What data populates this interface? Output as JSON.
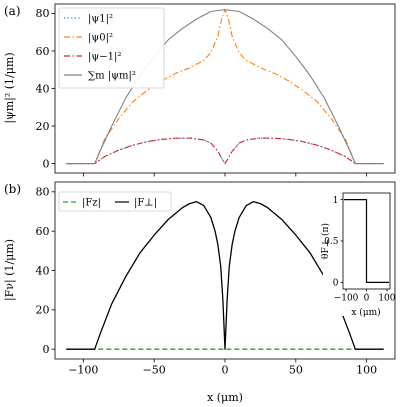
{
  "chart_data": [
    {
      "type": "line",
      "panel_label": "(a)",
      "xlim": [
        -120,
        120
      ],
      "ylim": [
        -5,
        85
      ],
      "xticks": [
        -100,
        -50,
        0,
        50,
        100
      ],
      "yticks": [
        0,
        20,
        40,
        60,
        80
      ],
      "show_x_tick_labels": false,
      "ylabel": "|ψm|² (1/μm)",
      "legend_position": "top-left",
      "series": [
        {
          "name": "|ψ1|²",
          "color": "#1f77b4",
          "style": "dotted",
          "x": [
            -112,
            -92,
            -85,
            -75,
            -65,
            -55,
            -45,
            -35,
            -25,
            -15,
            -10,
            -5,
            -2,
            0,
            2,
            5,
            10,
            15,
            25,
            35,
            45,
            55,
            65,
            75,
            85,
            92,
            112
          ],
          "y": [
            0,
            0,
            3.7,
            7.2,
            9.8,
            11.7,
            12.9,
            13.5,
            13.6,
            12.6,
            11.0,
            6.5,
            2.5,
            0,
            2.5,
            6.5,
            11.0,
            12.6,
            13.6,
            13.5,
            12.9,
            11.7,
            9.8,
            7.2,
            3.7,
            0,
            0
          ]
        },
        {
          "name": "|ψ0|²",
          "color": "#ff7f0e",
          "style": "dashdot",
          "x": [
            -112,
            -92,
            -85,
            -75,
            -65,
            -55,
            -45,
            -35,
            -25,
            -15,
            -10,
            -5,
            -2,
            0,
            2,
            5,
            10,
            15,
            25,
            35,
            45,
            55,
            65,
            75,
            85,
            92,
            112
          ],
          "y": [
            0,
            0,
            13,
            24,
            33,
            39,
            44,
            48,
            51,
            55,
            59,
            68,
            78,
            82,
            78,
            68,
            59,
            55,
            51,
            48,
            44,
            39,
            33,
            24,
            13,
            0,
            0
          ]
        },
        {
          "name": "|ψ−1|²",
          "color": "#d62728",
          "style": "dashdot",
          "x": [
            -112,
            -92,
            -85,
            -75,
            -65,
            -55,
            -45,
            -35,
            -25,
            -15,
            -10,
            -5,
            -2,
            0,
            2,
            5,
            10,
            15,
            25,
            35,
            45,
            55,
            65,
            75,
            85,
            92,
            112
          ],
          "y": [
            0,
            0,
            3.7,
            7.2,
            9.8,
            11.7,
            12.9,
            13.5,
            13.6,
            12.6,
            11.0,
            6.5,
            2.5,
            0,
            2.5,
            6.5,
            11.0,
            12.6,
            13.6,
            13.5,
            12.9,
            11.7,
            9.8,
            7.2,
            3.7,
            0,
            0
          ]
        },
        {
          "name": "∑m |ψm|²",
          "color": "#808080",
          "style": "solid",
          "x": [
            -112,
            -92,
            -88,
            -80,
            -70,
            -60,
            -50,
            -40,
            -30,
            -20,
            -10,
            0,
            10,
            20,
            30,
            40,
            50,
            60,
            70,
            80,
            88,
            92,
            112
          ],
          "y": [
            0,
            0,
            7,
            20,
            35,
            47,
            57,
            66,
            72,
            77,
            81,
            82,
            81,
            77,
            72,
            66,
            57,
            47,
            35,
            20,
            7,
            0,
            0
          ]
        }
      ]
    },
    {
      "type": "line",
      "panel_label": "(b)",
      "xlim": [
        -120,
        120
      ],
      "ylim": [
        -5,
        85
      ],
      "xticks": [
        -100,
        -50,
        0,
        50,
        100
      ],
      "yticks": [
        0,
        20,
        40,
        60,
        80
      ],
      "xlabel": "x (μm)",
      "ylabel": "|Fν| (1/μm)",
      "legend_position": "top-left",
      "series": [
        {
          "name": "|Fz|",
          "color": "#2ca02c",
          "style": "dashed",
          "x": [
            -112,
            112
          ],
          "y": [
            0,
            0
          ]
        },
        {
          "name": "|F⊥|",
          "color": "#000000",
          "style": "solid",
          "x": [
            -112,
            -92,
            -88,
            -80,
            -70,
            -60,
            -50,
            -40,
            -30,
            -25,
            -20,
            -15,
            -10,
            -7,
            -5,
            -3,
            -1.5,
            0,
            1.5,
            3,
            5,
            7,
            10,
            15,
            20,
            25,
            30,
            40,
            50,
            60,
            70,
            80,
            88,
            92,
            112
          ],
          "y": [
            0,
            0,
            8,
            23,
            37,
            49,
            58,
            66,
            72,
            74,
            75,
            73,
            67,
            60,
            53,
            42,
            25,
            0,
            25,
            42,
            53,
            60,
            67,
            73,
            75,
            74,
            72,
            66,
            58,
            49,
            37,
            23,
            8,
            0,
            0
          ]
        }
      ]
    },
    {
      "type": "line",
      "inset": true,
      "xlim": [
        -115,
        115
      ],
      "ylim": [
        -0.08,
        1.08
      ],
      "xticks": [
        -100,
        0,
        100
      ],
      "yticks": [
        0.0,
        0.5,
        1.0
      ],
      "xlabel": "x (μm)",
      "ylabel": "θF⊥ (π)",
      "series": [
        {
          "color": "#000000",
          "style": "solid",
          "x": [
            -110,
            0,
            0,
            110
          ],
          "y": [
            1,
            1,
            0,
            0
          ]
        }
      ]
    }
  ]
}
